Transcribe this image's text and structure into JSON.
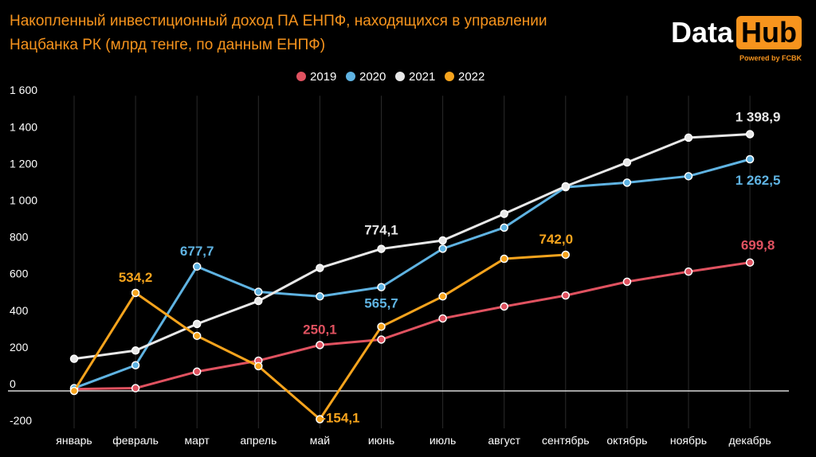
{
  "chart_data": {
    "type": "line",
    "title": "Накопленный инвестиционный доход ПА ЕНПФ, находящихся в управлении Нацбанка РК (млрд тенге, по данным ЕНПФ)",
    "categories": [
      "январь",
      "февраль",
      "март",
      "апрель",
      "май",
      "июнь",
      "июль",
      "август",
      "сентябрь",
      "октябрь",
      "ноябрь",
      "декабрь"
    ],
    "ylim": [
      -200,
      1600
    ],
    "yticks": [
      -200,
      0,
      200,
      400,
      600,
      800,
      1000,
      1200,
      1400,
      1600
    ],
    "ytick_labels": [
      "-200",
      "0",
      "200",
      "400",
      "600",
      "800",
      "1 000",
      "1 200",
      "1 400",
      "1 600"
    ],
    "series": [
      {
        "name": "2019",
        "color": "#e05260",
        "values": [
          10,
          15,
          105,
          165,
          250.1,
          280,
          395,
          460,
          520,
          595,
          650,
          699.8
        ]
      },
      {
        "name": "2020",
        "color": "#5fb3e2",
        "values": [
          15,
          140,
          677.7,
          540,
          515,
          565.7,
          775,
          890,
          1110,
          1135,
          1170,
          1262.5
        ]
      },
      {
        "name": "2021",
        "color": "#e8e8e8",
        "values": [
          175,
          220,
          365,
          490,
          670,
          774.1,
          820,
          965,
          1115,
          1245,
          1380,
          1398.9
        ]
      },
      {
        "name": "2022",
        "color": "#f7a41d",
        "values": [
          0,
          534.2,
          300,
          135,
          -154.1,
          350,
          515,
          720,
          742.0,
          null,
          null,
          null
        ]
      }
    ],
    "data_labels": [
      {
        "series": "2022",
        "index": 1,
        "text": "534,2",
        "color": "#f7a41d"
      },
      {
        "series": "2020",
        "index": 2,
        "text": "677,7",
        "color": "#5fb3e2"
      },
      {
        "series": "2019",
        "index": 4,
        "text": "250,1",
        "color": "#e05260"
      },
      {
        "series": "2022",
        "index": 4,
        "text": "-154,1",
        "color": "#f7a41d"
      },
      {
        "series": "2021",
        "index": 5,
        "text": "774,1",
        "color": "#e8e8e8"
      },
      {
        "series": "2020",
        "index": 5,
        "text": "565,7",
        "color": "#5fb3e2"
      },
      {
        "series": "2022",
        "index": 8,
        "text": "742,0",
        "color": "#f7a41d"
      },
      {
        "series": "2021",
        "index": 11,
        "text": "1 398,9",
        "color": "#e8e8e8"
      },
      {
        "series": "2020",
        "index": 11,
        "text": "1 262,5",
        "color": "#5fb3e2"
      },
      {
        "series": "2019",
        "index": 11,
        "text": "699,8",
        "color": "#e05260"
      }
    ],
    "legend": [
      "2019",
      "2020",
      "2021",
      "2022"
    ],
    "legend_position": "top-center",
    "grid": "vertical"
  },
  "header": {
    "title_line1": "Накопленный инвестиционный доход ПА ЕНПФ, находящихся в управлении",
    "title_line2": "Нацбанка РК (млрд тенге, по данным ЕНПФ)"
  },
  "logo": {
    "data": "Data",
    "hub": "Hub",
    "powered": "Powered by FCBK"
  }
}
